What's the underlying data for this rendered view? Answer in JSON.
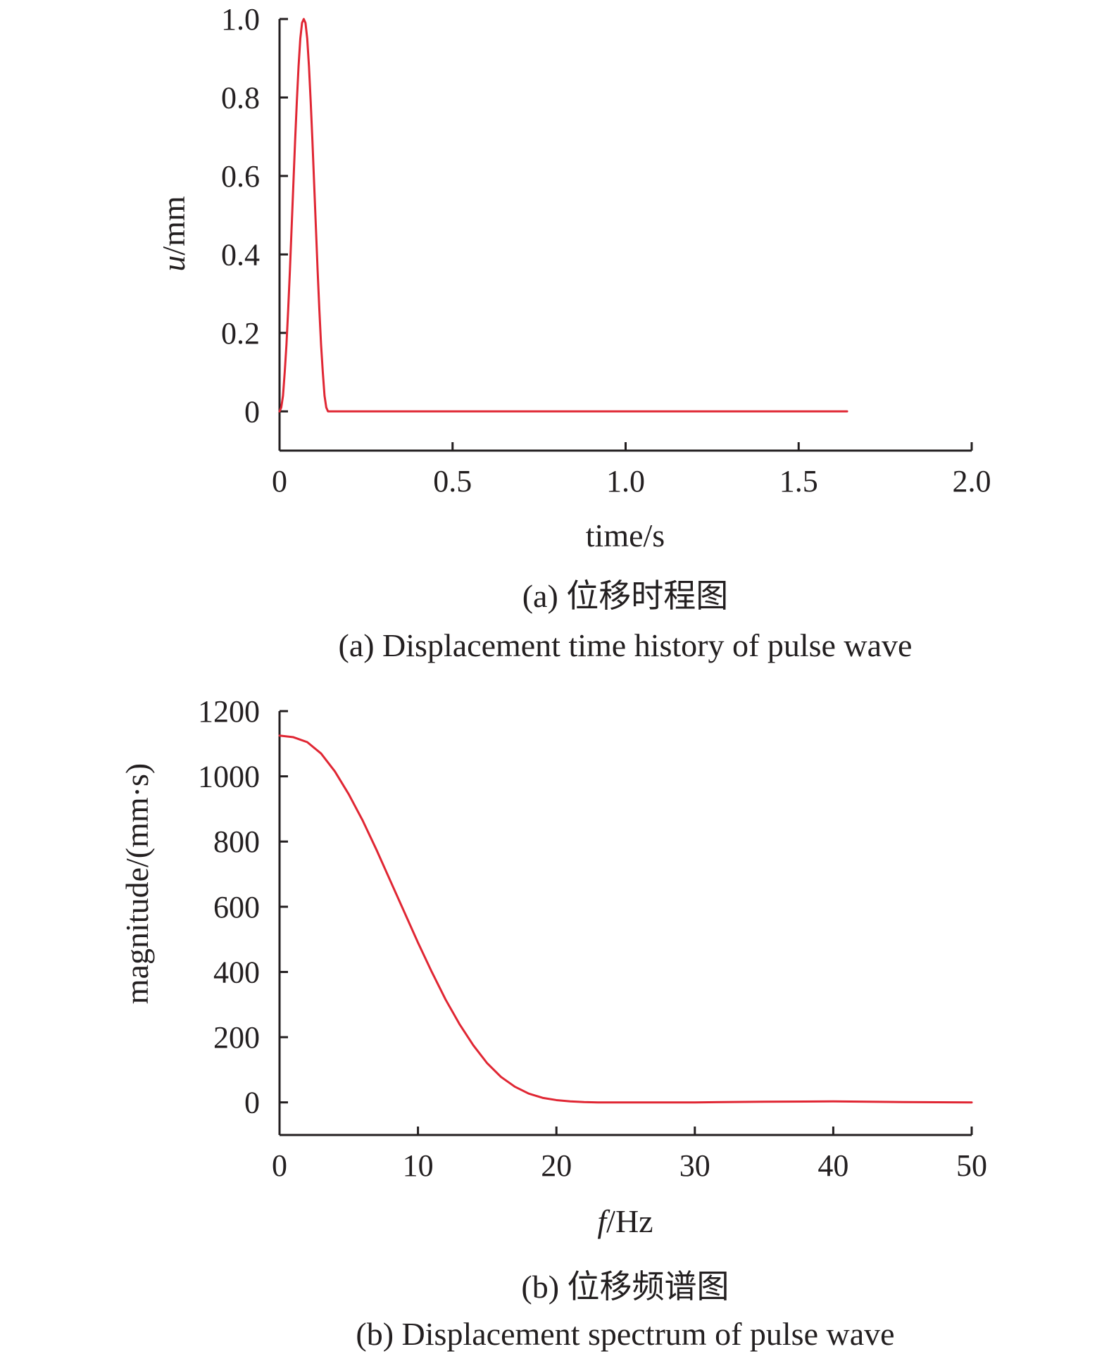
{
  "colors": {
    "series": "#e02633",
    "axis": "#231f20"
  },
  "chart_data": [
    {
      "type": "line",
      "xlabel_italic": "",
      "xlabel_rest": "time/s",
      "ylabel_italic": "u",
      "ylabel_rest": "/mm",
      "xlim": [
        0,
        2.0
      ],
      "ylim": [
        -0.1,
        1.0
      ],
      "xticks": [
        0,
        0.5,
        1.0,
        1.5,
        2.0
      ],
      "xtick_labels": [
        "0",
        "0.5",
        "1.0",
        "1.5",
        "2.0"
      ],
      "yticks": [
        0,
        0.2,
        0.4,
        0.6,
        0.8,
        1.0
      ],
      "ytick_labels": [
        "0",
        "0.2",
        "0.4",
        "0.6",
        "0.8",
        "1.0"
      ],
      "grid": false,
      "caption_cn": "(a) 位移时程图",
      "caption_en": "(a) Displacement time history of pulse wave",
      "series": [
        {
          "x": [
            0,
            0.005,
            0.01,
            0.015,
            0.02,
            0.025,
            0.03,
            0.035,
            0.04,
            0.045,
            0.05,
            0.055,
            0.06,
            0.065,
            0.07,
            0.075,
            0.08,
            0.085,
            0.09,
            0.095,
            0.1,
            0.105,
            0.11,
            0.115,
            0.12,
            0.125,
            0.13,
            0.135,
            0.14,
            0.145,
            0.15,
            0.2,
            0.4,
            0.6,
            0.8,
            1.0,
            1.2,
            1.4,
            1.64
          ],
          "y": [
            0,
            0.01,
            0.04,
            0.1,
            0.17,
            0.26,
            0.36,
            0.47,
            0.58,
            0.69,
            0.79,
            0.88,
            0.95,
            0.99,
            1.0,
            0.99,
            0.95,
            0.88,
            0.79,
            0.69,
            0.58,
            0.47,
            0.36,
            0.26,
            0.17,
            0.1,
            0.04,
            0.01,
            0,
            0,
            0,
            0,
            0,
            0,
            0,
            0,
            0,
            0,
            0
          ]
        }
      ]
    },
    {
      "type": "line",
      "xlabel_italic": "f",
      "xlabel_rest": "/Hz",
      "ylabel_italic": "",
      "ylabel_rest": "magnitude/(mm·s)",
      "xlim": [
        0,
        50
      ],
      "ylim": [
        -100,
        1200
      ],
      "xticks": [
        0,
        10,
        20,
        30,
        40,
        50
      ],
      "xtick_labels": [
        "0",
        "10",
        "20",
        "30",
        "40",
        "50"
      ],
      "yticks": [
        0,
        200,
        400,
        600,
        800,
        1000,
        1200
      ],
      "ytick_labels": [
        "0",
        "200",
        "400",
        "600",
        "800",
        "1000",
        "1200"
      ],
      "grid": false,
      "caption_cn": "(b) 位移频谱图",
      "caption_en": "(b) Displacement spectrum of pulse wave",
      "series": [
        {
          "x": [
            0,
            1,
            2,
            3,
            4,
            5,
            6,
            7,
            8,
            9,
            10,
            11,
            12,
            13,
            14,
            15,
            16,
            17,
            18,
            19,
            20,
            21,
            22,
            23,
            24,
            25,
            30,
            35,
            40,
            45,
            50
          ],
          "y": [
            1125,
            1120,
            1105,
            1070,
            1015,
            945,
            865,
            775,
            680,
            585,
            490,
            400,
            315,
            240,
            175,
            120,
            78,
            48,
            27,
            14,
            7,
            3,
            1,
            0,
            0,
            0,
            0,
            2,
            3,
            1,
            0
          ]
        }
      ]
    }
  ]
}
